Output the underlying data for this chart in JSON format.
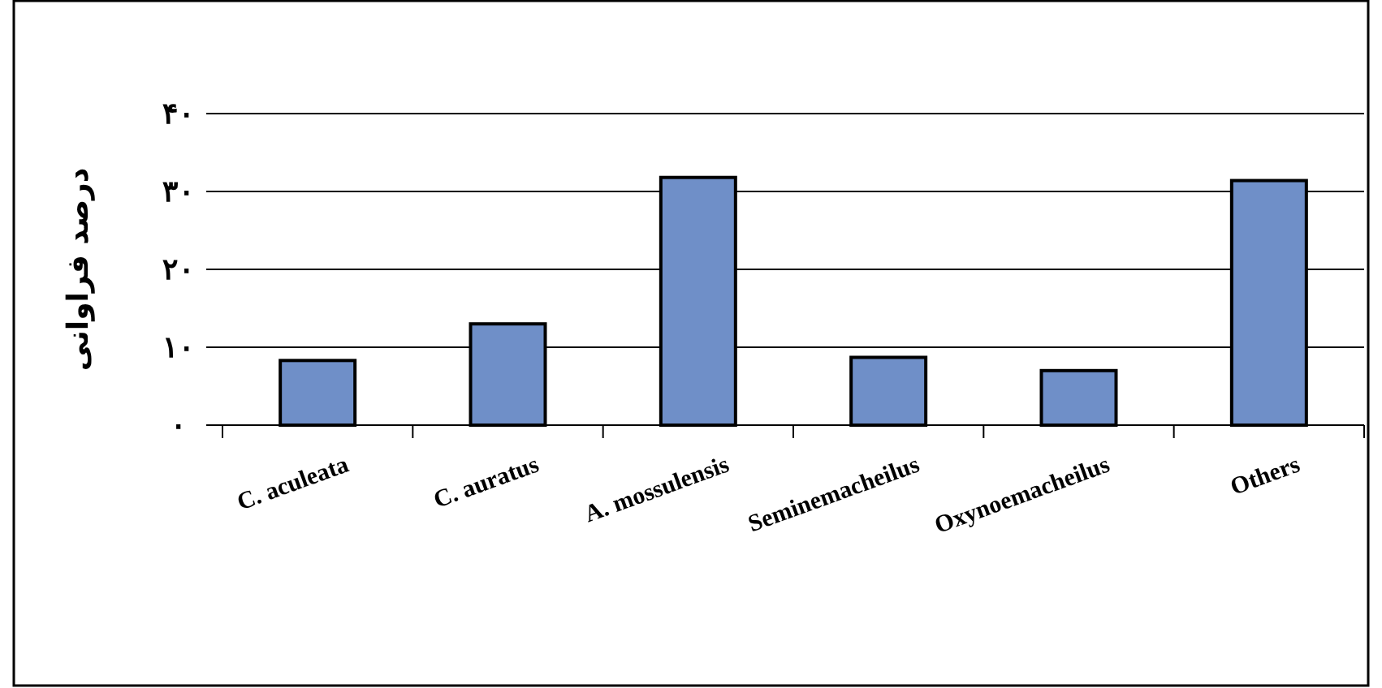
{
  "chart_data": {
    "type": "bar",
    "ylabel": "درصد فراوانی",
    "categories": [
      "C. aculeata",
      "C. auratus",
      "A. mossulensis",
      "Seminemacheilus",
      "Oxynoemacheilus",
      "Others"
    ],
    "values": [
      8.3,
      13.0,
      31.8,
      8.7,
      7.0,
      31.4
    ],
    "color": "#6f8fc8",
    "ylim": [
      0,
      40
    ],
    "yticks": [
      {
        "value": 0,
        "label": "۰"
      },
      {
        "value": 10,
        "label": "۱۰"
      },
      {
        "value": 20,
        "label": "۲۰"
      },
      {
        "value": 30,
        "label": "۳۰"
      },
      {
        "value": 40,
        "label": "۴۰"
      }
    ],
    "grid": "y"
  }
}
